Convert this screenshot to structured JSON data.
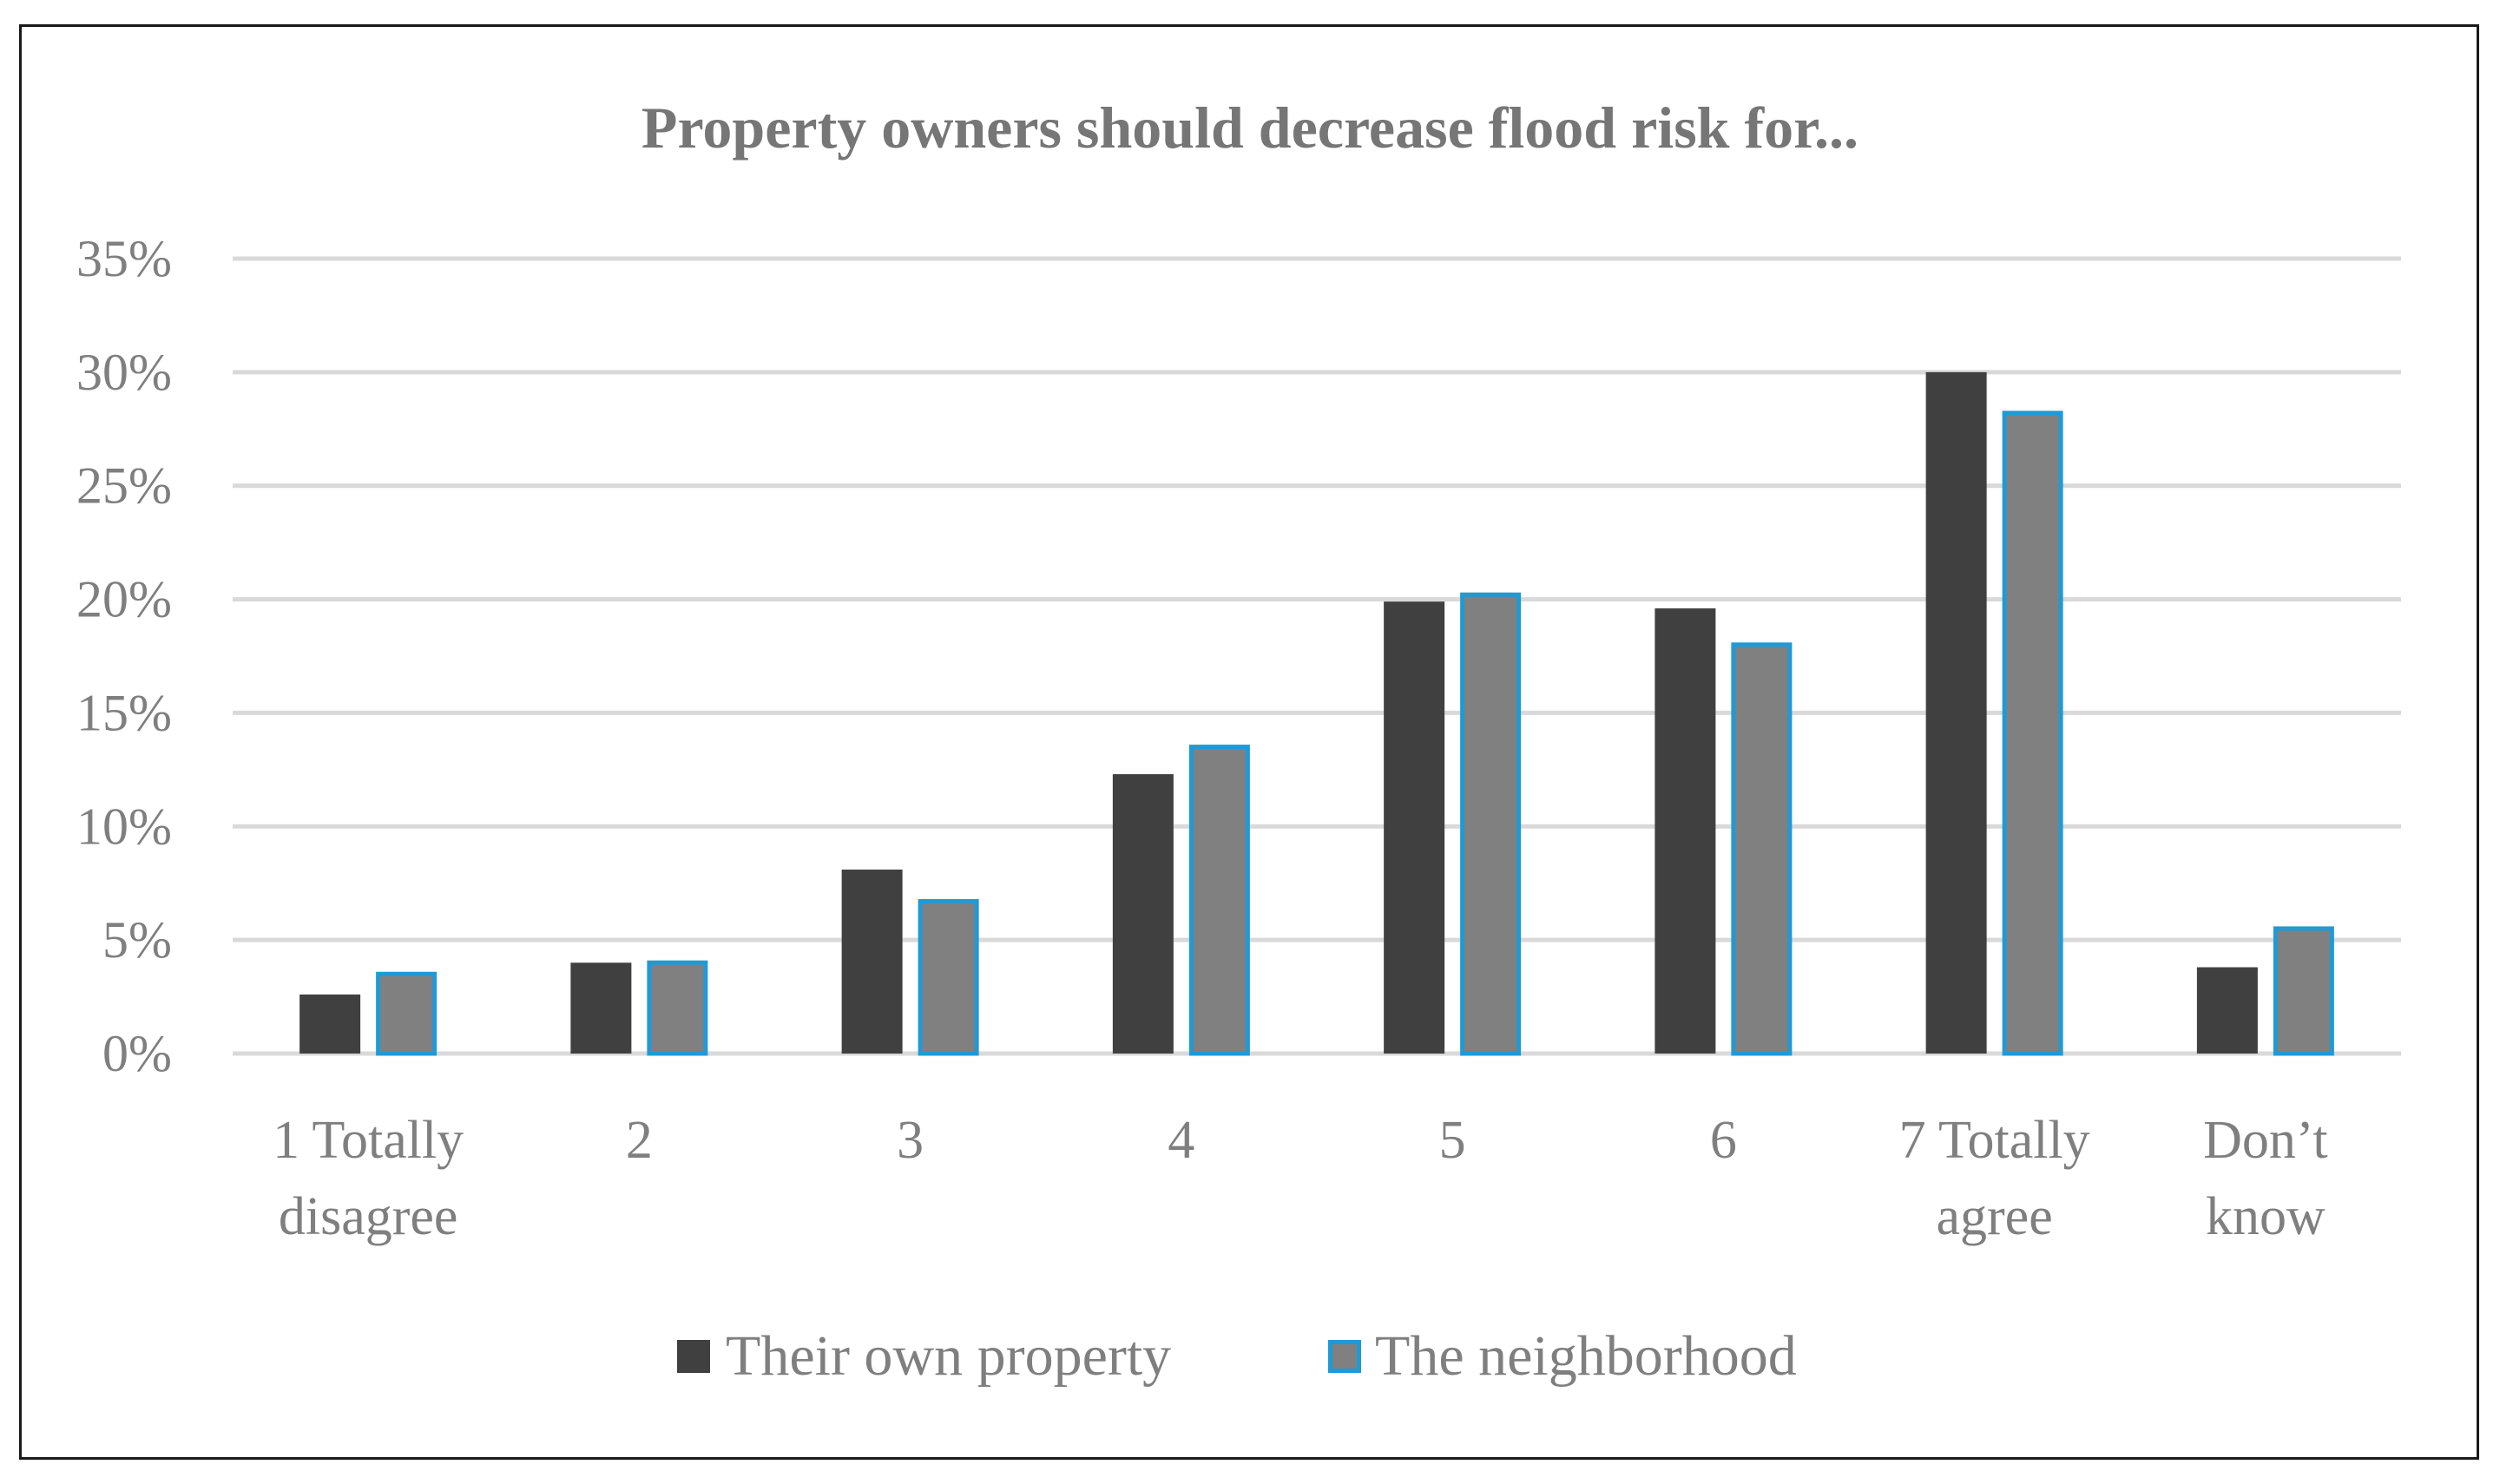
{
  "chart_data": {
    "type": "bar",
    "title": "Property owners should decrease flood risk for...",
    "xlabel": "",
    "ylabel": "",
    "ylim": [
      0,
      35
    ],
    "yticks": [
      0,
      5,
      10,
      15,
      20,
      25,
      30,
      35
    ],
    "ytick_labels": [
      "0%",
      "5%",
      "10%",
      "15%",
      "20%",
      "25%",
      "30%",
      "35%"
    ],
    "categories": [
      [
        "1 Totally",
        "disagree"
      ],
      [
        "2"
      ],
      [
        "3"
      ],
      [
        "4"
      ],
      [
        "5"
      ],
      [
        "6"
      ],
      [
        "7 Totally",
        "agree"
      ],
      [
        "Don’t",
        "know"
      ]
    ],
    "series": [
      {
        "name": "Their own property",
        "values": [
          2.6,
          4.0,
          8.1,
          12.3,
          19.9,
          19.6,
          30.0,
          3.8
        ]
      },
      {
        "name": "The neighborhood",
        "values": [
          3.6,
          4.1,
          6.8,
          13.6,
          20.3,
          18.1,
          28.3,
          5.6
        ]
      }
    ],
    "grid": true,
    "legend_position": "bottom",
    "colors": {
      "series_fill": [
        "#404040",
        "#808080"
      ],
      "series_stroke": [
        "#404040",
        "#1f9ad6"
      ],
      "grid": "#d9d9d9",
      "text": "#7f7f7f",
      "title": "#767676"
    }
  }
}
